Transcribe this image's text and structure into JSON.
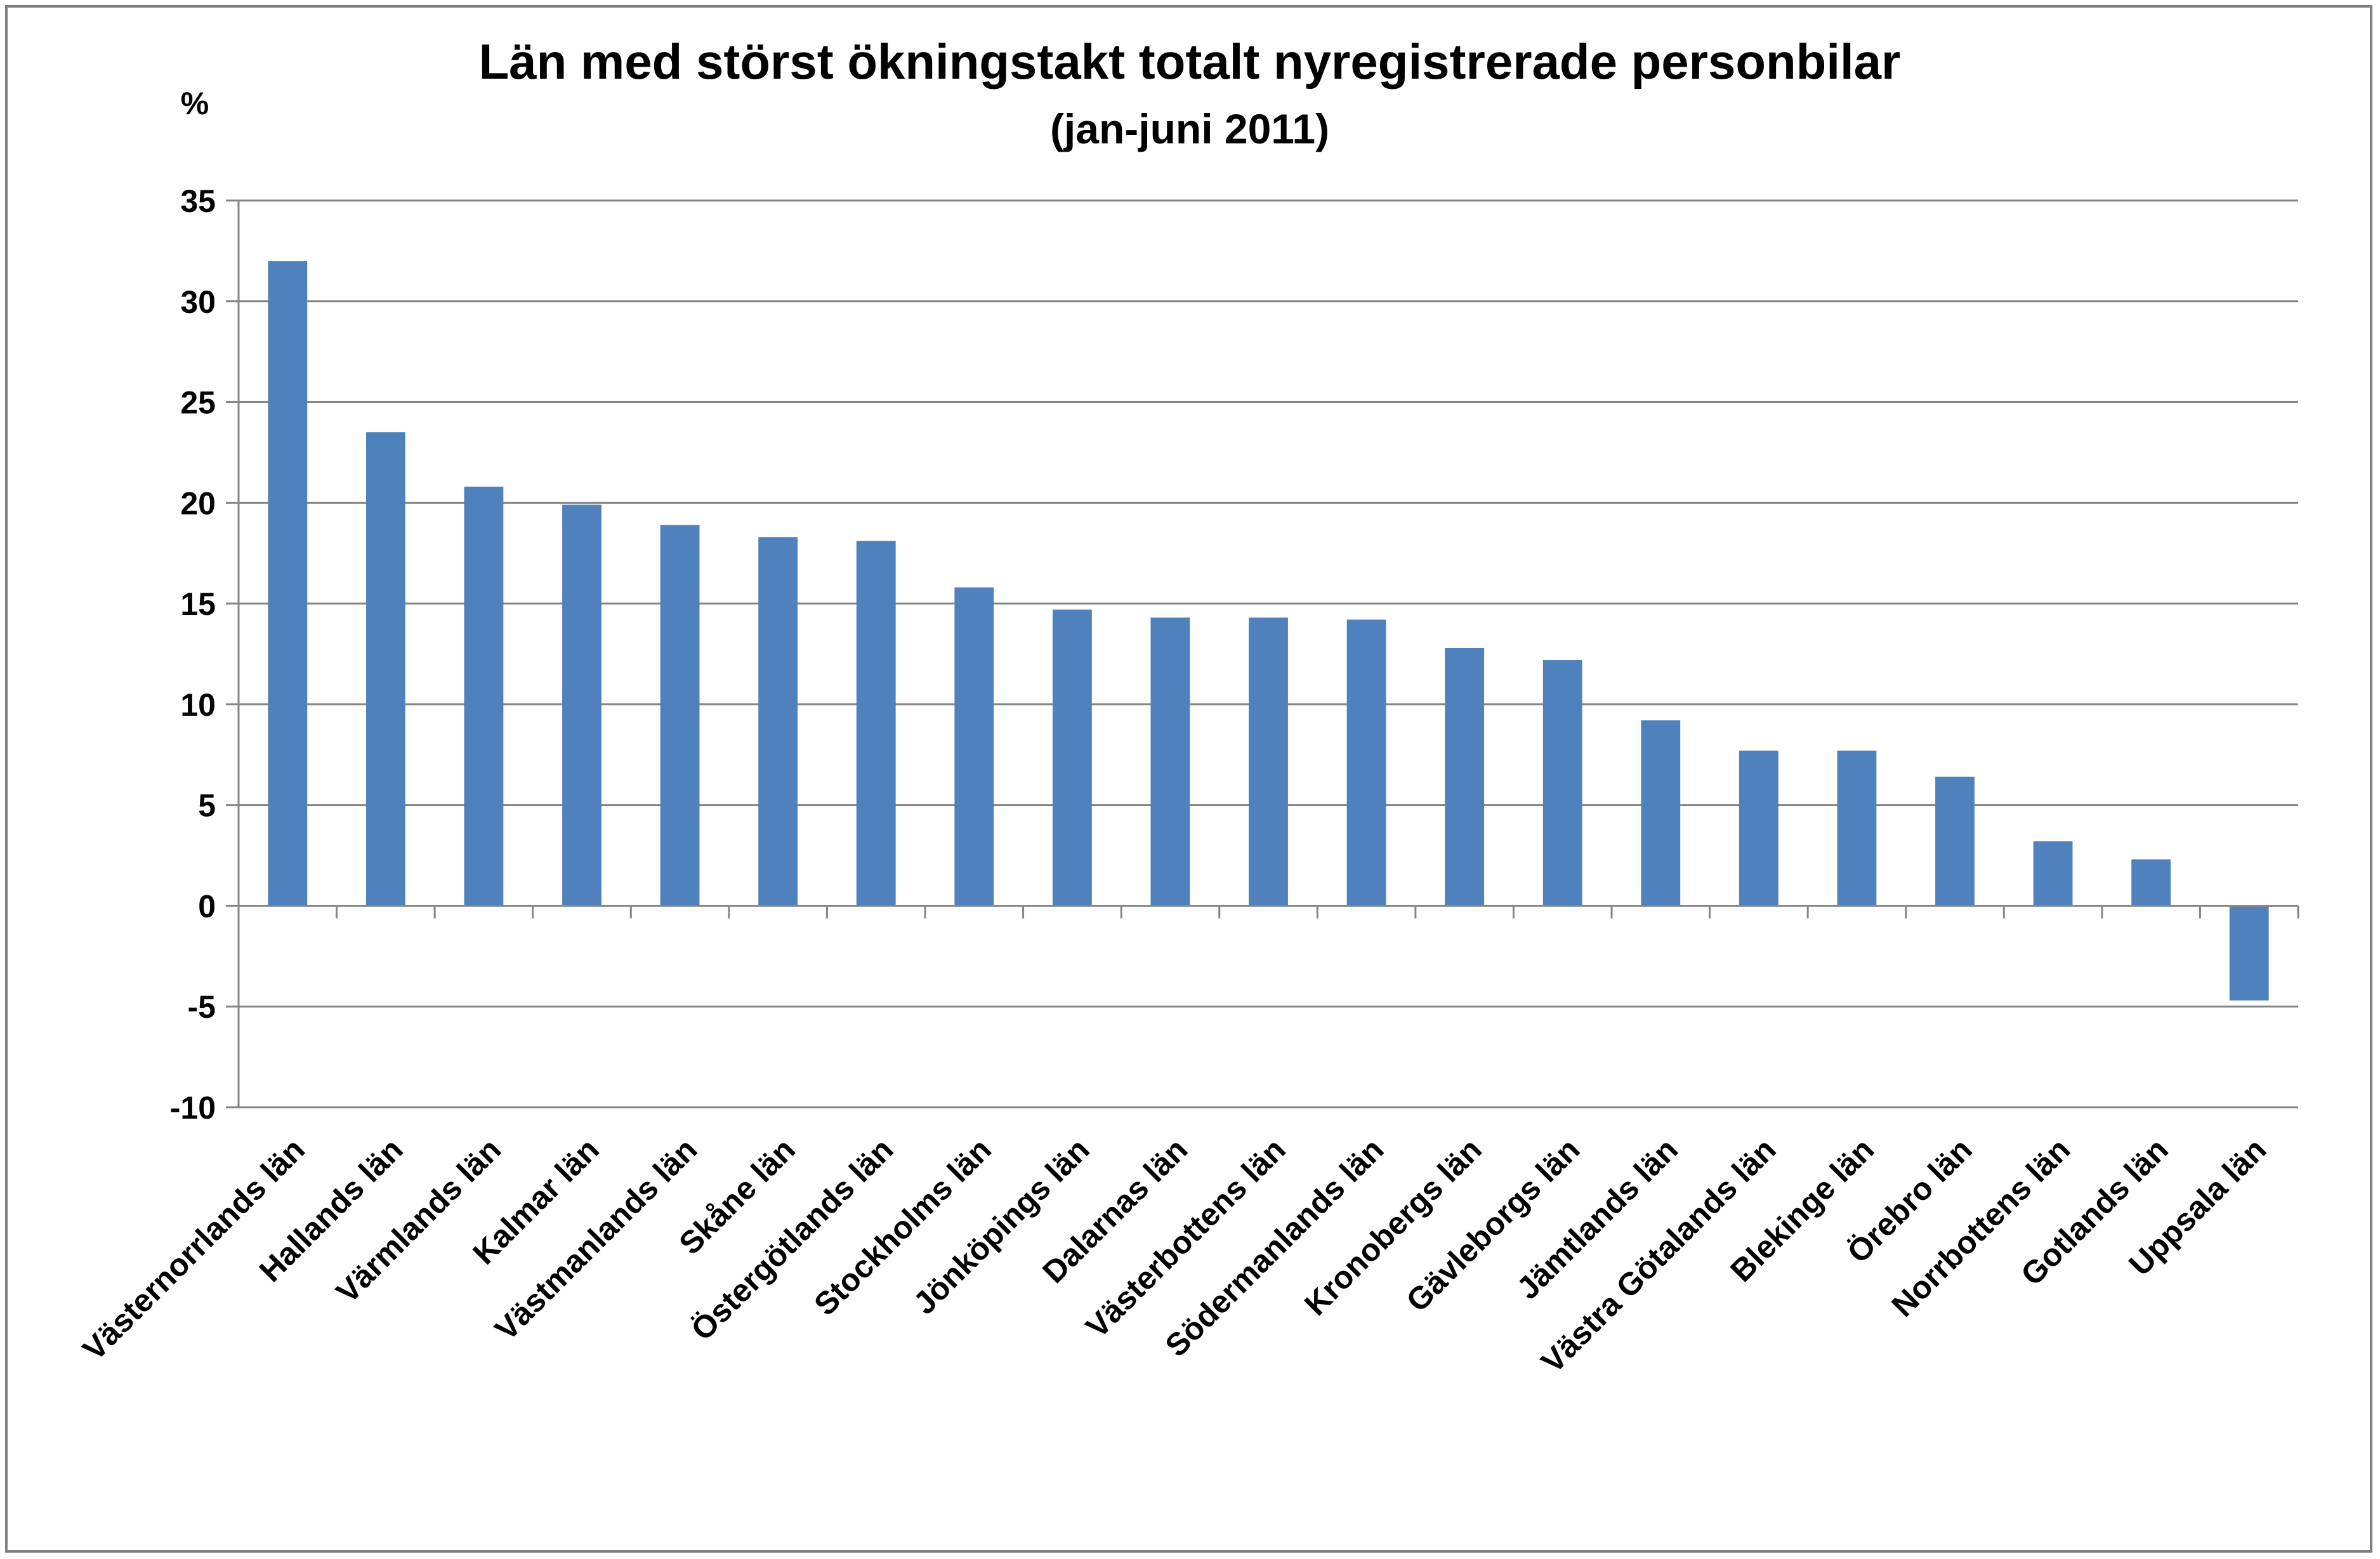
{
  "chart_data": {
    "type": "bar",
    "title": "Län med störst ökningstakt totalt nyregistrerade personbilar",
    "subtitle": "(jan-juni 2011)",
    "ylabel": "%",
    "xlabel": "",
    "ylim": [
      -10,
      35
    ],
    "yticks": [
      "35",
      "30",
      "25",
      "20",
      "15",
      "10",
      "5",
      "0",
      "-5",
      "-10"
    ],
    "ytick_values": [
      35,
      30,
      25,
      20,
      15,
      10,
      5,
      0,
      -5,
      -10
    ],
    "grid": true,
    "legend": "none",
    "bar_color": "#4f81bd",
    "categories": [
      "Västernorrlands län",
      "Hallands län",
      "Värmlands län",
      "Kalmar län",
      "Västmanlands län",
      "Skåne län",
      "Östergötlands län",
      "Stockholms län",
      "Jönköpings län",
      "Dalarnas län",
      "Västerbottens län",
      "Södermanlands län",
      "Kronobergs län",
      "Gävleborgs län",
      "Jämtlands län",
      "Västra Götalands län",
      "Blekinge län",
      "Örebro län",
      "Norrbottens län",
      "Gotlands län",
      "Uppsala län"
    ],
    "values": [
      32.0,
      23.5,
      20.8,
      19.9,
      18.9,
      18.3,
      18.1,
      15.8,
      14.7,
      14.3,
      14.3,
      14.2,
      12.8,
      12.2,
      9.2,
      7.7,
      7.7,
      6.4,
      3.2,
      2.3,
      -4.7
    ]
  }
}
